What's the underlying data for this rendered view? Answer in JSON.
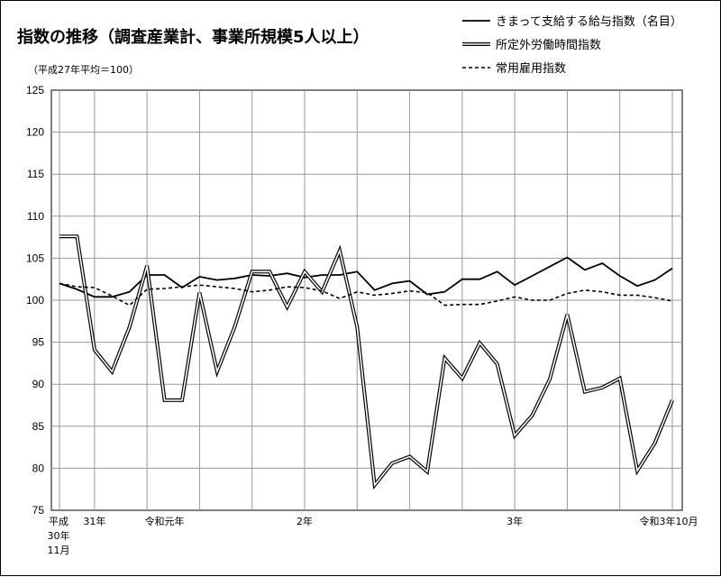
{
  "chart_data": {
    "type": "line",
    "title": "指数の推移（調査産業計、事業所規模5人以上）",
    "subtitle": "（平成27年平均＝100）",
    "ylim": [
      75,
      125
    ],
    "yticks": [
      75,
      80,
      85,
      90,
      95,
      100,
      105,
      110,
      115,
      120,
      125
    ],
    "grid": true,
    "legend_position": "top-right",
    "x_count": 36,
    "x_tick_labels": [
      {
        "index": 0,
        "lines": [
          "平成",
          "30年",
          "11月"
        ]
      },
      {
        "index": 2,
        "lines": [
          "31年"
        ]
      },
      {
        "index": 6,
        "lines": [
          "令和元年"
        ]
      },
      {
        "index": 14,
        "lines": [
          "2年"
        ]
      },
      {
        "index": 26,
        "lines": [
          "3年"
        ]
      },
      {
        "index": 35,
        "lines": [
          "令和3年10月"
        ]
      }
    ],
    "vertical_grid_indices": [
      0,
      2,
      5,
      8,
      11,
      14,
      17,
      20,
      23,
      26,
      29,
      32,
      35
    ],
    "series": [
      {
        "name": "きまって支給する給与指数（名目）",
        "style": "solid",
        "values": [
          102.0,
          101.3,
          100.4,
          100.4,
          101.0,
          103.0,
          103.0,
          101.5,
          102.8,
          102.4,
          102.6,
          103.0,
          102.9,
          103.2,
          102.7,
          103.0,
          103.0,
          103.4,
          101.2,
          102.0,
          102.3,
          100.7,
          101.0,
          102.5,
          102.5,
          103.4,
          101.8,
          102.9,
          104.0,
          105.1,
          103.6,
          104.4,
          102.9,
          101.7,
          102.4,
          103.8
        ]
      },
      {
        "name": "所定外労働時間指数",
        "style": "double",
        "values": [
          107.6,
          107.6,
          94.1,
          91.5,
          96.8,
          104.1,
          88.1,
          88.1,
          100.9,
          91.5,
          96.8,
          103.4,
          103.4,
          99.2,
          103.4,
          101.0,
          105.9,
          96.8,
          78.0,
          80.6,
          81.4,
          79.6,
          93.1,
          90.7,
          94.9,
          92.4,
          83.9,
          86.3,
          90.6,
          98.3,
          89.1,
          89.6,
          90.7,
          79.7,
          83.0,
          88.1
        ]
      },
      {
        "name": "常用雇用指数",
        "style": "dashed",
        "values": [
          102.0,
          101.6,
          101.5,
          100.5,
          99.4,
          101.3,
          101.4,
          101.6,
          101.8,
          101.6,
          101.4,
          101.0,
          101.2,
          101.6,
          101.5,
          101.1,
          100.2,
          101.0,
          100.6,
          100.8,
          101.1,
          100.9,
          99.4,
          99.5,
          99.5,
          99.9,
          100.4,
          100.0,
          100.0,
          100.8,
          101.2,
          101.0,
          100.6,
          100.6,
          100.3,
          99.9
        ]
      }
    ]
  }
}
